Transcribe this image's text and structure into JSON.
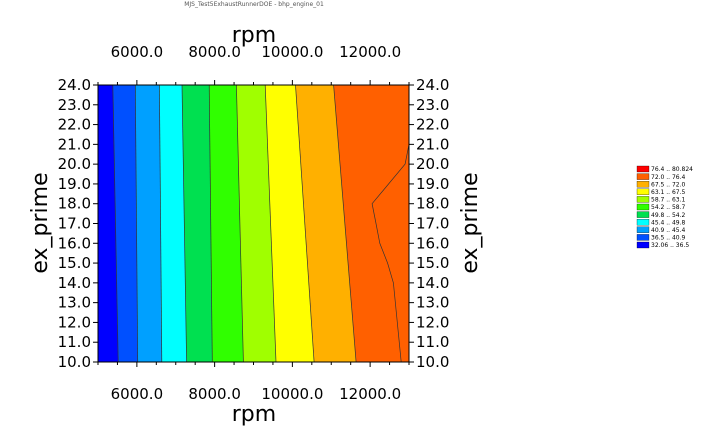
{
  "chart_data": {
    "type": "heatmap",
    "title": "MJS_Test5ExhaustRunnerDOE - bhp_engine_01",
    "xlabel": "rpm",
    "ylabel": "ex_prime",
    "xlim": [
      5000,
      13000
    ],
    "ylim": [
      10,
      24
    ],
    "x_ticks": [
      6000,
      8000,
      10000,
      12000
    ],
    "x_tick_labels": [
      "6000.0",
      "8000.0",
      "10000.0",
      "12000.0"
    ],
    "y_ticks": [
      10,
      11,
      12,
      13,
      14,
      15,
      16,
      17,
      18,
      19,
      20,
      21,
      22,
      23,
      24
    ],
    "y_tick_labels": [
      "10.0",
      "11.0",
      "12.0",
      "13.0",
      "14.0",
      "15.0",
      "16.0",
      "17.0",
      "18.0",
      "19.0",
      "20.0",
      "21.0",
      "22.0",
      "23.0",
      "24.0"
    ],
    "levels": [
      {
        "label": "32.06 .. 36.5",
        "color": "#0000ff"
      },
      {
        "label": "36.5 .. 40.9",
        "color": "#0050ff"
      },
      {
        "label": "40.9 .. 45.4",
        "color": "#00a0ff"
      },
      {
        "label": "45.4 .. 49.8",
        "color": "#00ffff"
      },
      {
        "label": "49.8 .. 54.2",
        "color": "#00e050"
      },
      {
        "label": "54.2 .. 58.7",
        "color": "#30ff00"
      },
      {
        "label": "58.7 .. 63.1",
        "color": "#a0ff00"
      },
      {
        "label": "63.1 .. 67.5",
        "color": "#ffff00"
      },
      {
        "label": "67.5 .. 72.0",
        "color": "#ffb000"
      },
      {
        "label": "72.0 .. 76.4",
        "color": "#ff6000"
      },
      {
        "label": "76.4 .. 80.824",
        "color": "#ff0000"
      }
    ],
    "contour_boundaries_rpm": [
      {
        "at_ex_prime_10": 5520,
        "at_ex_prime_24": 5380
      },
      {
        "at_ex_prime_10": 6020,
        "at_ex_prime_24": 5960
      },
      {
        "at_ex_prime_10": 6640,
        "at_ex_prime_24": 6580
      },
      {
        "at_ex_prime_10": 7280,
        "at_ex_prime_24": 7160
      },
      {
        "at_ex_prime_10": 7940,
        "at_ex_prime_24": 7860
      },
      {
        "at_ex_prime_10": 8740,
        "at_ex_prime_24": 8560
      },
      {
        "at_ex_prime_10": 9580,
        "at_ex_prime_24": 9300
      },
      {
        "at_ex_prime_10": 10560,
        "at_ex_prime_24": 10080
      },
      {
        "at_ex_prime_10": 11640,
        "at_ex_prime_24": 11060
      },
      {
        "points": [
          [
            10,
            12800
          ],
          [
            14,
            12600
          ],
          [
            15,
            12450
          ],
          [
            16,
            12250
          ],
          [
            17,
            12150
          ],
          [
            18,
            12050
          ],
          [
            20,
            12900
          ],
          [
            21,
            13000
          ]
        ]
      }
    ],
    "grid": false,
    "legend_position": "right"
  }
}
